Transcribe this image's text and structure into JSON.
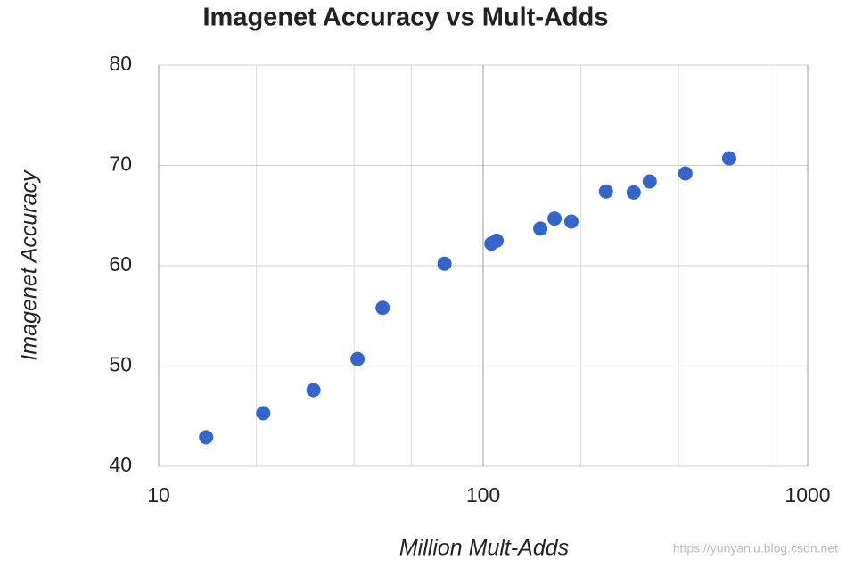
{
  "chart_data": {
    "type": "scatter",
    "title": "Imagenet Accuracy vs Mult-Adds",
    "x_label": "Million Mult-Adds",
    "y_label": "Imagenet Accuracy",
    "watermark": "https://yunyanlu.blog.csdn.net",
    "x_scale": "log",
    "grid": true,
    "color": "#3366cc",
    "xlim": [
      10,
      1000
    ],
    "xticks": [
      10,
      100,
      1000
    ],
    "xgrid": [
      20,
      40,
      60,
      200,
      400,
      800
    ],
    "ylim": [
      40,
      80
    ],
    "yticks": [
      40,
      50,
      60,
      70,
      80
    ],
    "x": [
      14,
      21,
      30,
      41,
      49,
      76,
      106,
      110,
      150,
      166,
      187,
      239,
      291,
      326,
      420,
      573
    ],
    "values": [
      42.9,
      45.3,
      47.6,
      50.7,
      55.8,
      60.2,
      62.2,
      62.5,
      63.7,
      64.7,
      64.4,
      67.4,
      67.3,
      68.4,
      69.2,
      70.7
    ]
  }
}
